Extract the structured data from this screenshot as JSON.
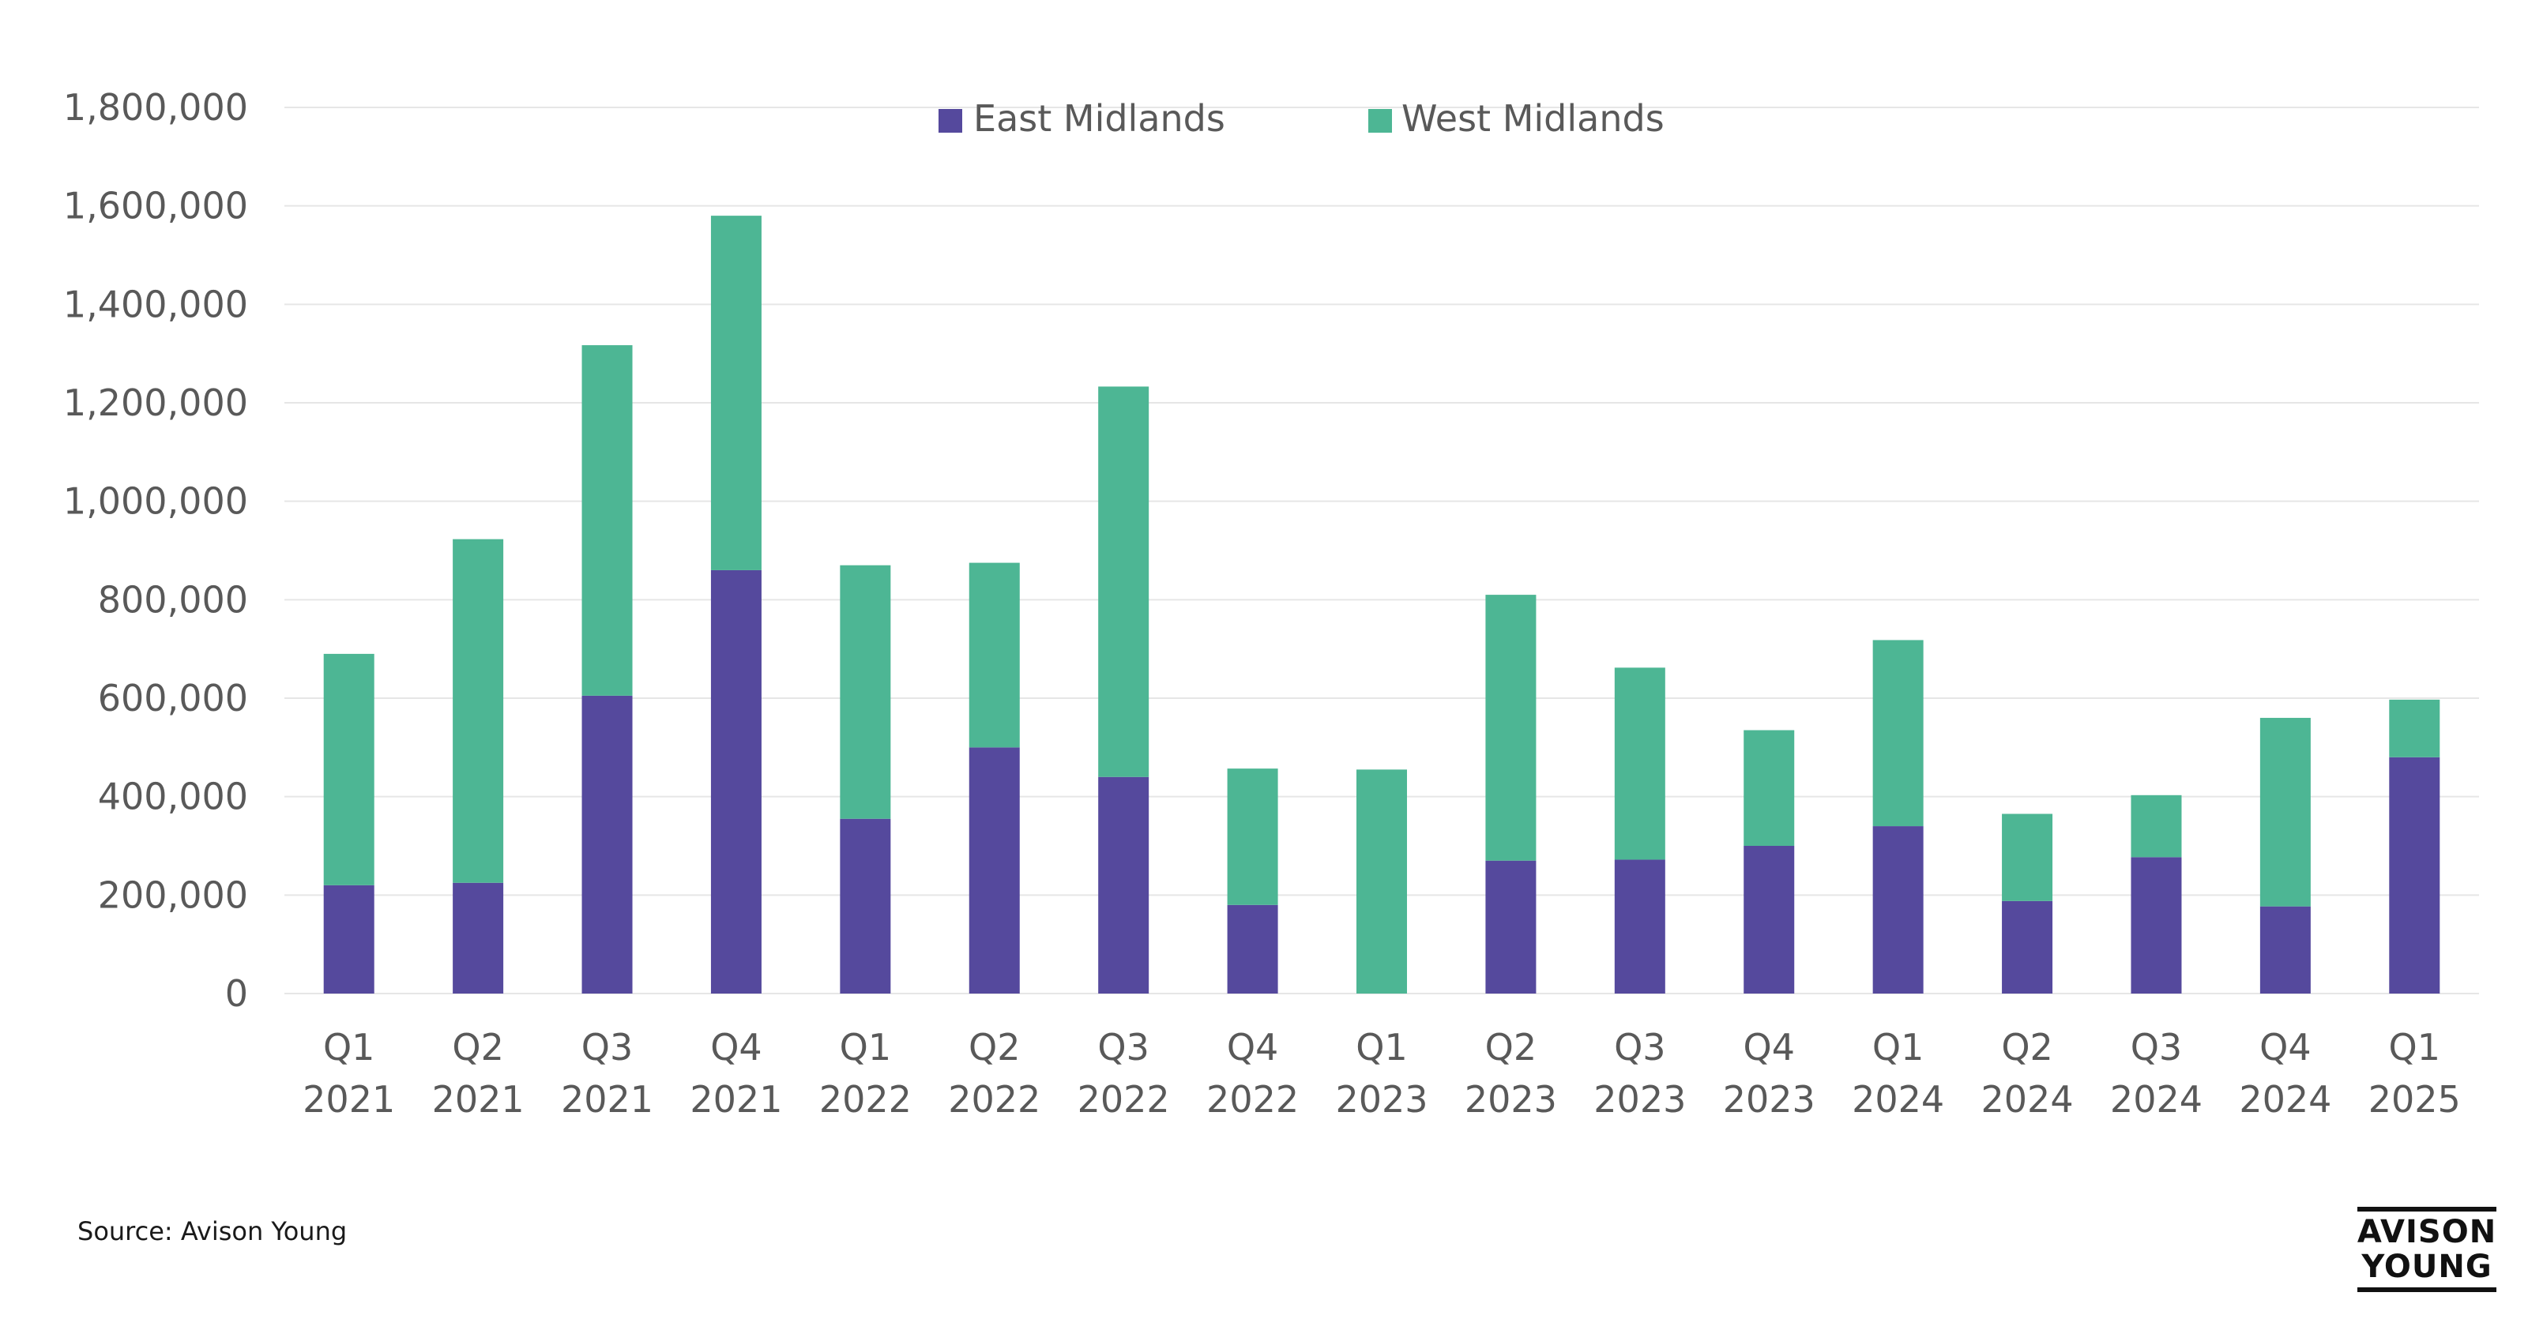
{
  "source": "Source: Avison Young",
  "logo": {
    "line1": "AVISON",
    "line2": "YOUNG"
  },
  "colors": {
    "east": "#55499d",
    "west": "#4db694",
    "grid": "#e6e6e6",
    "axis_text": "#595959"
  },
  "chart_data": {
    "type": "bar",
    "stacked": true,
    "categories": [
      [
        "Q1",
        "2021"
      ],
      [
        "Q2",
        "2021"
      ],
      [
        "Q3",
        "2021"
      ],
      [
        "Q4",
        "2021"
      ],
      [
        "Q1",
        "2022"
      ],
      [
        "Q2",
        "2022"
      ],
      [
        "Q3",
        "2022"
      ],
      [
        "Q4",
        "2022"
      ],
      [
        "Q1",
        "2023"
      ],
      [
        "Q2",
        "2023"
      ],
      [
        "Q3",
        "2023"
      ],
      [
        "Q4",
        "2023"
      ],
      [
        "Q1",
        "2024"
      ],
      [
        "Q2",
        "2024"
      ],
      [
        "Q3",
        "2024"
      ],
      [
        "Q4",
        "2024"
      ],
      [
        "Q1",
        "2025"
      ]
    ],
    "series": [
      {
        "name": "East Midlands",
        "color": "#55499d",
        "values": [
          220000,
          225000,
          605000,
          860000,
          355000,
          500000,
          440000,
          180000,
          0,
          270000,
          272000,
          300000,
          340000,
          188000,
          277000,
          177000,
          480000
        ]
      },
      {
        "name": "West Midlands",
        "color": "#4db694",
        "values": [
          470000,
          698000,
          712000,
          720000,
          515000,
          375000,
          793000,
          277000,
          455000,
          540000,
          390000,
          235000,
          378000,
          177000,
          126000,
          383000,
          117000
        ]
      }
    ],
    "y_ticks": [
      "0",
      "200,000",
      "400,000",
      "600,000",
      "800,000",
      "1,000,000",
      "1,200,000",
      "1,400,000",
      "1,600,000",
      "1,800,000"
    ],
    "ylim": [
      0,
      1800000
    ],
    "grid": true,
    "legend_position": "top-center"
  }
}
